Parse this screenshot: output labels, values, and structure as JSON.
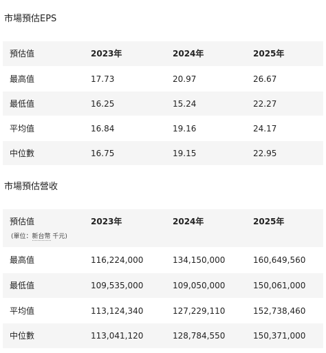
{
  "eps": {
    "title": "市場預估EPS",
    "header": [
      "預估值",
      "2023年",
      "2024年",
      "2025年"
    ],
    "rows": [
      [
        "最高值",
        "17.73",
        "20.97",
        "26.67"
      ],
      [
        "最低值",
        "16.25",
        "15.24",
        "22.27"
      ],
      [
        "平均值",
        "16.84",
        "19.16",
        "24.17"
      ],
      [
        "中位數",
        "16.75",
        "19.15",
        "22.95"
      ]
    ]
  },
  "revenue": {
    "title": "市場預估營收",
    "header": [
      "預估值",
      "2023年",
      "2024年",
      "2025年"
    ],
    "unit_prefix": "(單位：",
    "unit_currency": "新台幣",
    "unit_suffix": " 千元)",
    "rows": [
      [
        "最高值",
        "116,224,000",
        "134,150,000",
        "160,649,560"
      ],
      [
        "最低值",
        "109,535,000",
        "109,050,000",
        "150,061,000"
      ],
      [
        "平均值",
        "113,124,340",
        "127,229,110",
        "152,738,460"
      ],
      [
        "中位數",
        "113,041,120",
        "128,784,550",
        "150,371,000"
      ]
    ]
  }
}
